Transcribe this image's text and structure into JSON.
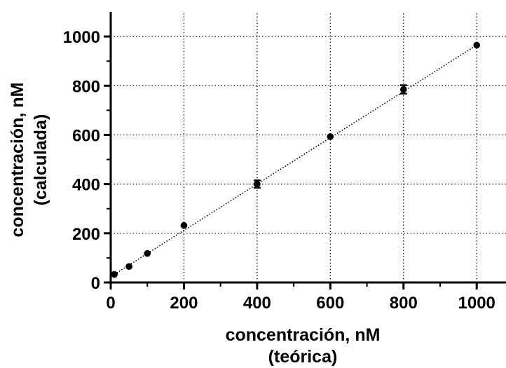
{
  "chart_data": {
    "type": "scatter",
    "title": "",
    "xlabel": [
      "concentración, nM",
      "(teórica)"
    ],
    "ylabel": [
      "concentración, nM",
      "(calculada)"
    ],
    "xlim": [
      0,
      1080
    ],
    "ylim": [
      0,
      1100
    ],
    "xticks": [
      0,
      200,
      400,
      600,
      800,
      1000
    ],
    "yticks": [
      0,
      200,
      400,
      600,
      800,
      1000
    ],
    "xtick_labels": [
      "0",
      "200",
      "400",
      "600",
      "800",
      "1000"
    ],
    "ytick_labels": [
      "0",
      "200",
      "400",
      "600",
      "800",
      "1000"
    ],
    "grid": true,
    "grid_style": "dotted",
    "marker_color": "#000000",
    "series": [
      {
        "points": [
          {
            "x": 10,
            "y": 33,
            "err": 0
          },
          {
            "x": 50,
            "y": 65,
            "err": 0
          },
          {
            "x": 100,
            "y": 118,
            "err": 0
          },
          {
            "x": 200,
            "y": 232,
            "err": 0
          },
          {
            "x": 400,
            "y": 400,
            "err": 15
          },
          {
            "x": 600,
            "y": 593,
            "err": 0
          },
          {
            "x": 800,
            "y": 785,
            "err": 17
          },
          {
            "x": 1000,
            "y": 965,
            "err": 0
          }
        ]
      }
    ],
    "fit_line": {
      "style": "dotted",
      "from": [
        10,
        33
      ],
      "to": [
        1000,
        965
      ]
    }
  }
}
